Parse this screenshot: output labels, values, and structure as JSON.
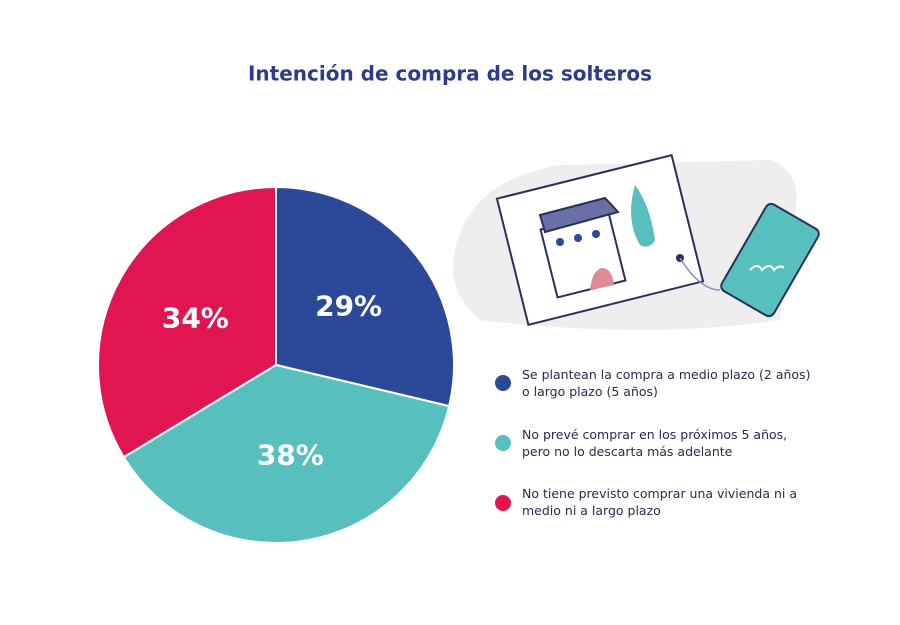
{
  "chart_data": {
    "type": "pie",
    "title": "Intención de compra de los solteros",
    "categories": [
      "Se plantean la compra a medio plazo (2 años) o largo plazo (5 años)",
      "No prevé comprar en los próximos 5 años, pero no lo descarta más adelante",
      "No tiene previsto comprar una vivienda ni a medio ni a largo plazo"
    ],
    "values": [
      29,
      38,
      34
    ],
    "value_labels": [
      "29%",
      "38%",
      "34%"
    ],
    "colors": [
      "#2b4899",
      "#58bfbf",
      "#e01552"
    ]
  }
}
